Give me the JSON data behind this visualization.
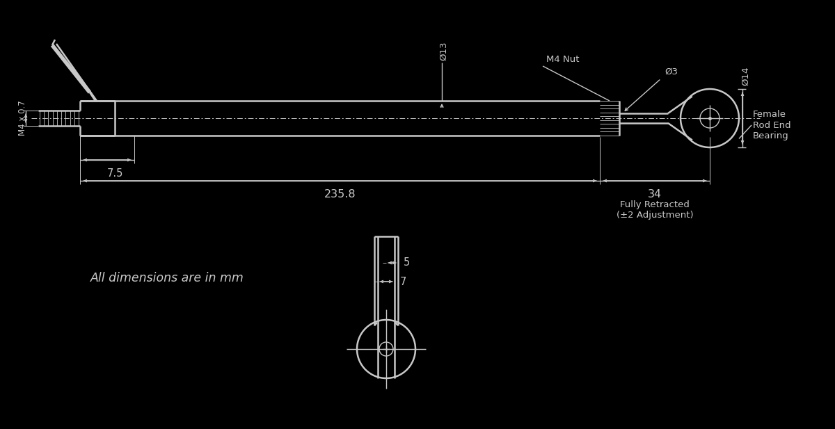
{
  "bg_color": "#000000",
  "line_color": "#c8c8c8",
  "text_color": "#c8c8c8",
  "dim_235_8": "235.8",
  "dim_34": "34",
  "dim_7_5": "7.5",
  "dim_phi3": "Ø3",
  "dim_phi13": "Ø13",
  "dim_phi14": "Ø14",
  "label_m4_nut": "M4 Nut",
  "label_m4x07": "M4 x 0.7",
  "label_fully_retracted": "Fully Retracted\n(±2 Adjustment)",
  "label_female_rod": "Female\nRod End\nBearing",
  "label_all_dims": "All dimensions are in mm",
  "dim_5": "5",
  "dim_7": "7"
}
